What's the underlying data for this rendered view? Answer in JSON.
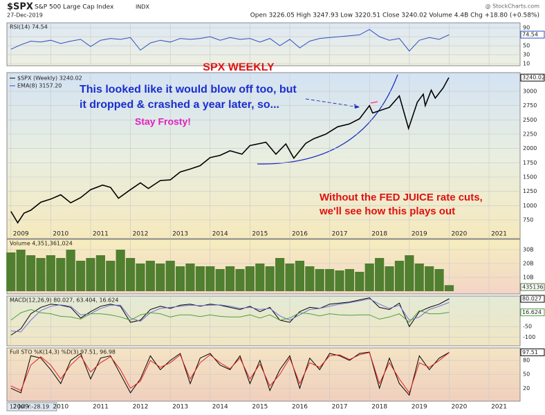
{
  "header": {
    "symbol": "$SPX",
    "name": "S&P 500 Large Cap Index",
    "exchange": "INDX",
    "date": "27-Dec-2019",
    "quote": "Open 3226.05 High 3247.93 Low 3220.51 Close 3240.02 Volume 4.4B Chg +18.80 (+0.58%)",
    "source": "@ StockCharts.com"
  },
  "cursor_label": "12 Jul Y:-28.19",
  "chart_data": [
    {
      "type": "line",
      "title": "RSI(14) 74.54",
      "color": "#2a4fc0",
      "x": [
        2009,
        2009.25,
        2009.5,
        2009.75,
        2010,
        2010.25,
        2010.5,
        2010.75,
        2011,
        2011.25,
        2011.5,
        2011.75,
        2012,
        2012.25,
        2012.5,
        2012.75,
        2013,
        2013.25,
        2013.5,
        2013.75,
        2014,
        2014.25,
        2014.5,
        2014.75,
        2015,
        2015.25,
        2015.5,
        2015.75,
        2016,
        2016.25,
        2016.5,
        2016.75,
        2017,
        2017.25,
        2017.5,
        2017.75,
        2018,
        2018.25,
        2018.5,
        2018.75,
        2019,
        2019.25,
        2019.5,
        2019.75,
        2020
      ],
      "values": [
        42,
        52,
        60,
        58,
        62,
        55,
        60,
        64,
        48,
        62,
        66,
        64,
        68,
        40,
        56,
        62,
        58,
        66,
        64,
        66,
        70,
        62,
        68,
        64,
        66,
        58,
        66,
        50,
        64,
        45,
        60,
        66,
        68,
        70,
        72,
        74,
        86,
        70,
        62,
        66,
        38,
        62,
        68,
        64,
        74.54
      ],
      "xlim": [
        2008.9,
        2021.78
      ],
      "xticks": [
        2009,
        2010,
        2011,
        2012,
        2013,
        2014,
        2015,
        2016,
        2017,
        2018,
        2019,
        2020,
        2021
      ],
      "ylim": [
        5.4,
        100.8
      ],
      "yticks": [
        90,
        70,
        50,
        30,
        10
      ]
    },
    {
      "type": "line",
      "title": "SPX WEEKLY",
      "x": [
        2009,
        2009.17,
        2009.33,
        2009.5,
        2009.75,
        2010,
        2010.25,
        2010.5,
        2010.75,
        2011,
        2011.3,
        2011.5,
        2011.7,
        2012,
        2012.25,
        2012.45,
        2012.75,
        2013,
        2013.25,
        2013.5,
        2013.75,
        2014,
        2014.25,
        2014.5,
        2014.8,
        2015,
        2015.4,
        2015.65,
        2015.9,
        2016.1,
        2016.4,
        2016.6,
        2016.9,
        2017.2,
        2017.5,
        2017.75,
        2018,
        2018.08,
        2018.5,
        2018.75,
        2018.98,
        2019.2,
        2019.35,
        2019.4,
        2019.55,
        2019.65,
        2019.85,
        2019.99
      ],
      "series": [
        {
          "name": "$SPX (Weekly) 3240.02",
          "color": "#000000",
          "values": [
            900,
            700,
            870,
            920,
            1060,
            1115,
            1190,
            1050,
            1140,
            1280,
            1360,
            1320,
            1130,
            1280,
            1400,
            1300,
            1440,
            1450,
            1590,
            1640,
            1700,
            1840,
            1880,
            1960,
            1900,
            2050,
            2110,
            1900,
            2080,
            1830,
            2090,
            2170,
            2250,
            2380,
            2430,
            2520,
            2750,
            2620,
            2720,
            2920,
            2350,
            2810,
            2950,
            2750,
            3020,
            2880,
            3060,
            3240.02
          ]
        }
      ],
      "ema_label": "EMA(8) 3157.20",
      "annotations": [
        "This looked like it would blow off too, but",
        "it dropped & crashed a year later, so...",
        "Stay Frosty!",
        "Without the FED JUICE rate cuts,",
        "we'll see how this plays out"
      ],
      "xlim": [
        2008.9,
        2021.78
      ],
      "xticks": [
        2009,
        2010,
        2011,
        2012,
        2013,
        2014,
        2015,
        2016,
        2017,
        2018,
        2019,
        2020,
        2021
      ],
      "ylim": [
        423,
        3327
      ],
      "yticks": [
        750,
        1000,
        1250,
        1500,
        1750,
        2000,
        2250,
        2500,
        2750,
        3000
      ]
    },
    {
      "type": "bar",
      "title": "Volume 4,351,361,024",
      "color": "#4f7f2f",
      "last_label": "435136",
      "x": [
        2009,
        2009.25,
        2009.5,
        2009.75,
        2010,
        2010.25,
        2010.5,
        2010.75,
        2011,
        2011.25,
        2011.5,
        2011.75,
        2012,
        2012.25,
        2012.5,
        2012.75,
        2013,
        2013.25,
        2013.5,
        2013.75,
        2014,
        2014.25,
        2014.5,
        2014.75,
        2015,
        2015.25,
        2015.5,
        2015.75,
        2016,
        2016.25,
        2016.5,
        2016.75,
        2017,
        2017.25,
        2017.5,
        2017.75,
        2018,
        2018.25,
        2018.5,
        2018.75,
        2019,
        2019.25,
        2019.5,
        2019.75,
        2020
      ],
      "values": [
        28,
        30,
        26,
        24,
        26,
        24,
        30,
        22,
        24,
        26,
        22,
        30,
        24,
        20,
        22,
        20,
        22,
        18,
        20,
        18,
        18,
        16,
        18,
        16,
        18,
        20,
        18,
        24,
        20,
        22,
        18,
        16,
        16,
        15,
        16,
        14,
        20,
        24,
        18,
        22,
        26,
        20,
        18,
        16,
        4.351361024
      ],
      "xlim": [
        2008.9,
        2021.78
      ],
      "xticks": [
        2009,
        2010,
        2011,
        2012,
        2013,
        2014,
        2015,
        2016,
        2017,
        2018,
        2019,
        2020,
        2021
      ],
      "ylim": [
        -2,
        37.5
      ],
      "yticks": [
        {
          "value": 30,
          "label": "30B"
        },
        {
          "value": 20,
          "label": "20B"
        },
        {
          "value": 10,
          "label": "10B"
        }
      ]
    },
    {
      "type": "line",
      "title": "MACD(12,26,9) 80.027, 63.404, 16.624",
      "x": [
        2009,
        2009.25,
        2009.5,
        2009.75,
        2010,
        2010.25,
        2010.5,
        2010.75,
        2011,
        2011.25,
        2011.5,
        2011.75,
        2012,
        2012.25,
        2012.5,
        2012.75,
        2013,
        2013.25,
        2013.5,
        2013.75,
        2014,
        2014.25,
        2014.5,
        2014.75,
        2015,
        2015.25,
        2015.5,
        2015.75,
        2016,
        2016.25,
        2016.5,
        2016.75,
        2017,
        2017.25,
        2017.5,
        2017.75,
        2018,
        2018.25,
        2018.5,
        2018.75,
        2019,
        2019.25,
        2019.5,
        2019.75,
        2020
      ],
      "series": [
        {
          "color": "#000000",
          "values": [
            -90,
            -60,
            10,
            40,
            55,
            50,
            40,
            -10,
            20,
            45,
            55,
            45,
            -30,
            -20,
            30,
            45,
            35,
            50,
            55,
            45,
            55,
            50,
            40,
            30,
            45,
            20,
            40,
            -20,
            -30,
            20,
            40,
            35,
            55,
            60,
            65,
            75,
            85,
            40,
            30,
            60,
            -50,
            20,
            40,
            55,
            80.027
          ]
        },
        {
          "color": "#6f6fd8",
          "values": [
            -70,
            -75,
            -20,
            25,
            45,
            52,
            45,
            5,
            10,
            35,
            50,
            50,
            -10,
            -25,
            15,
            35,
            40,
            45,
            50,
            48,
            50,
            52,
            45,
            35,
            40,
            30,
            35,
            0,
            -20,
            5,
            30,
            35,
            45,
            55,
            62,
            70,
            80,
            55,
            35,
            50,
            -20,
            -5,
            30,
            45,
            63.404
          ]
        },
        {
          "color": "#4f9f3f",
          "values": [
            -20,
            15,
            30,
            15,
            10,
            -2,
            -5,
            -15,
            10,
            10,
            5,
            -5,
            -20,
            5,
            15,
            10,
            -5,
            5,
            5,
            -3,
            5,
            -2,
            -5,
            -5,
            5,
            -10,
            5,
            -20,
            -10,
            15,
            10,
            0,
            10,
            5,
            3,
            5,
            5,
            -15,
            -5,
            10,
            -30,
            25,
            10,
            10,
            16.624
          ]
        }
      ],
      "xlim": [
        2008.9,
        2021.78
      ],
      "xticks": [
        2009,
        2010,
        2011,
        2012,
        2013,
        2014,
        2015,
        2016,
        2017,
        2018,
        2019,
        2020,
        2021
      ],
      "ylim": [
        -140,
        93
      ],
      "yticks": [
        -50,
        -100
      ]
    },
    {
      "type": "line",
      "title": "Full STO %K(14,3) %D(3) 97.51, 96.98",
      "x": [
        2009,
        2009.25,
        2009.5,
        2009.75,
        2010,
        2010.25,
        2010.5,
        2010.75,
        2011,
        2011.25,
        2011.5,
        2011.75,
        2012,
        2012.25,
        2012.5,
        2012.75,
        2013,
        2013.25,
        2013.5,
        2013.75,
        2014,
        2014.25,
        2014.5,
        2014.75,
        2015,
        2015.25,
        2015.5,
        2015.75,
        2016,
        2016.25,
        2016.5,
        2016.75,
        2017,
        2017.25,
        2017.5,
        2017.75,
        2018,
        2018.25,
        2018.5,
        2018.75,
        2019,
        2019.25,
        2019.5,
        2019.75,
        2020
      ],
      "series": [
        {
          "color": "#000000",
          "values": [
            20,
            10,
            90,
            85,
            60,
            30,
            80,
            95,
            40,
            85,
            90,
            50,
            10,
            40,
            90,
            60,
            80,
            95,
            30,
            85,
            95,
            70,
            60,
            90,
            30,
            80,
            15,
            60,
            90,
            20,
            85,
            60,
            95,
            90,
            80,
            95,
            98,
            20,
            85,
            30,
            5,
            90,
            60,
            85,
            97.51
          ]
        },
        {
          "color": "#e02020",
          "values": [
            25,
            15,
            70,
            88,
            70,
            40,
            70,
            90,
            55,
            75,
            88,
            60,
            20,
            35,
            80,
            65,
            75,
            92,
            40,
            75,
            92,
            75,
            62,
            85,
            40,
            72,
            25,
            50,
            85,
            30,
            75,
            65,
            90,
            92,
            82,
            92,
            97,
            30,
            75,
            40,
            10,
            75,
            65,
            80,
            96.98
          ]
        }
      ],
      "xlim": [
        2008.9,
        2021.78
      ],
      "xticks": [
        2009,
        2010,
        2011,
        2012,
        2013,
        2014,
        2015,
        2016,
        2017,
        2018,
        2019,
        2020,
        2021
      ],
      "ylim": [
        -8,
        107
      ],
      "yticks": [
        80,
        50,
        20
      ]
    }
  ]
}
